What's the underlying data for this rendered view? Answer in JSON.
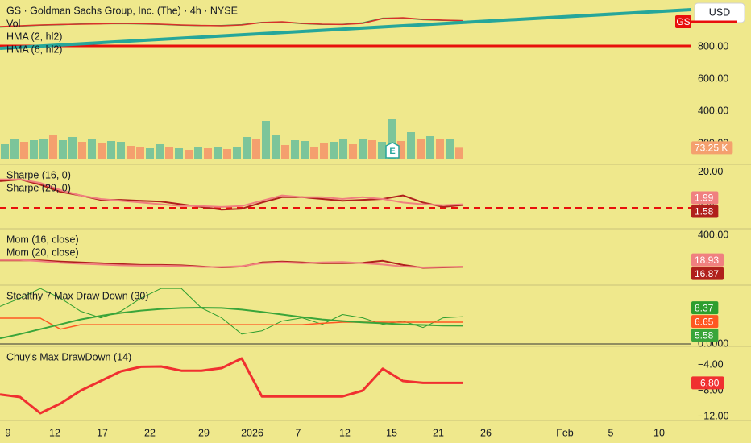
{
  "chart_data": [
    {
      "type": "line",
      "title": "GS · Goldman Sachs Group, Inc. (The) · 4h · NYSE",
      "ylim": [
        70,
        1090
      ],
      "y2lim": [
        -30,
        990
      ],
      "yticks": [
        {
          "value": 800,
          "label": "800.00"
        },
        {
          "value": 600,
          "label": "600.00"
        },
        {
          "value": 400,
          "label": "400.00"
        },
        {
          "value": 200,
          "label": "200.00"
        }
      ],
      "currency": "USD",
      "symbol": "GS",
      "last_price": 955,
      "earnings_label": "E",
      "levels": [
        {
          "value": 805,
          "color": "#e8100c",
          "width": 3,
          "style": "solid"
        }
      ],
      "series": [
        {
          "name": "Vol",
          "type": "bar",
          "axis": "y2",
          "colors": [
            "#7cc59a",
            "#f4a06e"
          ],
          "up": [
            true,
            true,
            false,
            true,
            true,
            false,
            true,
            true,
            false,
            true,
            false,
            true,
            true,
            false,
            false,
            true,
            true,
            false,
            true,
            false,
            true,
            false,
            true,
            false,
            true,
            true,
            false,
            true,
            true,
            false,
            true,
            true,
            false,
            false,
            true,
            true,
            false,
            true,
            false,
            true,
            true,
            false,
            true,
            false,
            true,
            false,
            true,
            false
          ],
          "values": [
            95,
            125,
            110,
            120,
            125,
            150,
            120,
            140,
            110,
            130,
            100,
            115,
            110,
            85,
            80,
            70,
            95,
            80,
            70,
            60,
            80,
            70,
            75,
            65,
            80,
            140,
            130,
            240,
            150,
            90,
            120,
            115,
            80,
            100,
            110,
            125,
            95,
            130,
            120,
            110,
            250,
            115,
            170,
            130,
            145,
            125,
            130,
            73.25
          ],
          "value_labels": [
            null,
            null,
            null,
            null,
            null,
            null,
            null,
            null,
            null,
            null,
            null,
            null,
            null,
            null,
            null,
            null,
            null,
            null,
            null,
            null,
            null,
            null,
            null,
            null,
            null,
            null,
            null,
            null,
            null,
            null,
            null,
            null,
            null,
            null,
            null,
            null,
            null,
            null,
            null,
            null,
            null,
            null,
            null,
            null,
            null,
            null,
            null,
            "73.25 K"
          ],
          "show_last": true
        },
        {
          "name": "HMA (2, hl2)",
          "color": "#2e9e5b",
          "width": 1.5,
          "values": [
            922,
            928,
            934,
            937,
            941,
            943,
            944,
            942,
            939,
            934,
            931,
            931,
            937,
            951,
            953,
            944,
            939,
            939,
            948,
            977,
            978,
            968,
            964,
            961
          ]
        },
        {
          "name": "HMA (6, hl2)",
          "color": "#d9302a",
          "width": 1.5,
          "values": [
            925,
            930,
            935,
            938,
            940,
            942,
            945,
            943,
            940,
            935,
            932,
            930,
            935,
            950,
            955,
            945,
            940,
            938,
            945,
            975,
            980,
            970,
            965,
            962
          ]
        },
        {
          "color": "#26a69a",
          "width": 4,
          "x": [
            0,
            34.32
          ],
          "values": [
            790,
            1030
          ]
        }
      ]
    },
    {
      "type": "line",
      "ylim": [
        -11.8,
        24.5
      ],
      "yticks": [
        {
          "value": 20,
          "label": "20.00"
        },
        {
          "value": 0,
          "label": "0.00"
        }
      ],
      "levels": [
        {
          "value": 0,
          "color": "#e8100c",
          "width": 2,
          "style": "dashed"
        }
      ],
      "series": [
        {
          "name": "Sharpe (16, 0)",
          "color": "#b0201c",
          "width": 2,
          "show_last": true,
          "values": [
            15,
            16,
            13,
            9,
            7,
            4.5,
            4.5,
            4,
            3.5,
            2,
            0.5,
            -1,
            -0.5,
            3,
            6,
            6,
            5,
            4,
            4.5,
            5,
            7,
            3,
            0.5,
            1.58
          ]
        },
        {
          "name": "Sharpe (20, 0)",
          "color": "#f08080",
          "width": 2,
          "show_last": true,
          "values": [
            16,
            16,
            14,
            10,
            7,
            5,
            4,
            3,
            2,
            1,
            1,
            0.5,
            1,
            4,
            7,
            6,
            6,
            5,
            6,
            5,
            3,
            2,
            1.5,
            1.99
          ]
        }
      ]
    },
    {
      "type": "line",
      "ylim": [
        -205,
        478
      ],
      "yticks": [
        {
          "value": 400,
          "label": "400.00"
        }
      ],
      "series": [
        {
          "name": "Mom (16, close)",
          "color": "#b0201c",
          "width": 2,
          "show_last": true,
          "values": [
            95,
            95,
            95,
            80,
            70,
            60,
            50,
            40,
            40,
            35,
            20,
            10,
            20,
            70,
            80,
            70,
            60,
            60,
            65,
            90,
            40,
            5,
            10,
            16.87
          ]
        },
        {
          "name": "Mom (20, close)",
          "color": "#f08080",
          "width": 2,
          "show_last": true,
          "values": [
            100,
            100,
            85,
            65,
            55,
            45,
            35,
            30,
            30,
            25,
            15,
            15,
            25,
            60,
            70,
            60,
            70,
            75,
            60,
            45,
            20,
            10,
            15,
            18.93
          ]
        }
      ]
    },
    {
      "type": "line",
      "title": "Stealthy 7 Max Draw Down (30)",
      "ylim": [
        -0.74,
        18
      ],
      "yticks": [
        {
          "value": 0,
          "label": "0.0000"
        }
      ],
      "levels": [
        {
          "value": 0,
          "color": "#333333",
          "width": 1,
          "style": "solid"
        }
      ],
      "series": [
        {
          "color": "#2e9e2e",
          "width": 1,
          "show_last": true,
          "values": [
            11.5,
            14,
            17,
            14,
            10,
            8,
            10,
            14,
            17,
            17,
            11,
            8,
            3,
            4,
            7,
            8,
            6,
            9,
            8,
            6,
            7,
            5,
            8,
            8.37
          ]
        },
        {
          "color": "#ff5722",
          "width": 1.5,
          "show_last": true,
          "values": [
            7.9,
            7.9,
            7.9,
            4.5,
            5.9,
            5.9,
            5.9,
            5.9,
            5.9,
            5.9,
            5.9,
            5.9,
            5.9,
            5.9,
            5.9,
            5.9,
            6.3,
            6.65,
            6.65,
            6.65,
            6.65,
            6.65,
            6.65,
            6.65
          ]
        },
        {
          "color": "#3aa53a",
          "width": 2,
          "show_last": true,
          "values": [
            1.7,
            3,
            4.5,
            6,
            7.5,
            8.6,
            9.5,
            10.2,
            10.7,
            11,
            11.1,
            11,
            10.5,
            9.8,
            9,
            8.2,
            7.5,
            7,
            6.6,
            6.3,
            6,
            5.8,
            5.6,
            5.58
          ]
        }
      ]
    },
    {
      "type": "line",
      "title": "Chuy's Max DrawDown (14)",
      "ylim": [
        -12.625,
        -1.125
      ],
      "yticks": [
        {
          "value": -4,
          "label": "−4.00"
        },
        {
          "value": -8,
          "label": "−8.00"
        },
        {
          "value": -12,
          "label": "−12.00"
        }
      ],
      "xlim": [
        0,
        34.32
      ],
      "xticks": [
        {
          "value": 0.4,
          "label": "9"
        },
        {
          "value": 2.72,
          "label": "12"
        },
        {
          "value": 5.08,
          "label": "17"
        },
        {
          "value": 7.44,
          "label": "22"
        },
        {
          "value": 10.12,
          "label": "29"
        },
        {
          "value": 12.52,
          "label": "2026"
        },
        {
          "value": 14.8,
          "label": "7"
        },
        {
          "value": 17.12,
          "label": "12"
        },
        {
          "value": 19.44,
          "label": "15"
        },
        {
          "value": 21.76,
          "label": "21"
        },
        {
          "value": 24.12,
          "label": "26"
        },
        {
          "value": 28.04,
          "label": "Feb"
        },
        {
          "value": 30.32,
          "label": "5"
        },
        {
          "value": 32.72,
          "label": "10"
        }
      ],
      "series": [
        {
          "color": "#f03030",
          "width": 3,
          "show_last": true,
          "values": [
            -8.6,
            -9,
            -11.5,
            -10,
            -8,
            -6.5,
            -5,
            -4.3,
            -4.25,
            -4.9,
            -4.9,
            -4.5,
            -3,
            -8.9,
            -8.9,
            -8.9,
            -8.9,
            -8.9,
            -8,
            -4.6,
            -6.5,
            -6.8,
            -6.8,
            -6.8
          ],
          "value_labels": [
            null,
            null,
            null,
            null,
            null,
            null,
            null,
            null,
            null,
            null,
            null,
            null,
            null,
            null,
            null,
            null,
            null,
            null,
            null,
            null,
            null,
            null,
            null,
            "−6.80"
          ]
        }
      ]
    }
  ]
}
